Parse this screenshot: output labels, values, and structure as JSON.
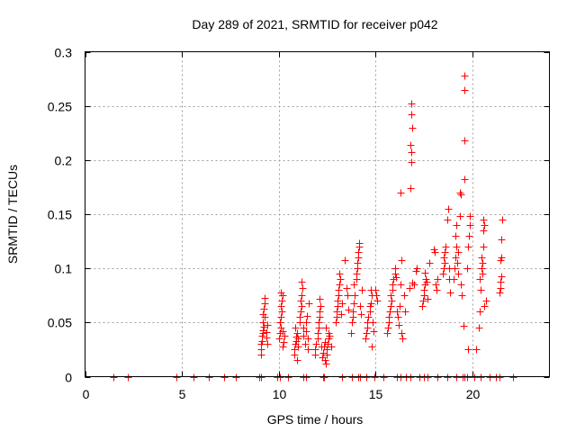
{
  "chart_data": {
    "type": "scatter",
    "title": "Day 289 of 2021, SRMTID for receiver p042",
    "xlabel": "GPS time / hours",
    "ylabel": "SRMTID / TECUs",
    "xlim": [
      0,
      24
    ],
    "ylim": [
      0,
      0.3
    ],
    "grid": true,
    "legend": "none",
    "marker": "plus",
    "color": "#ff0000",
    "x_ticks": [
      {
        "v": 0,
        "label": "0"
      },
      {
        "v": 5,
        "label": "5"
      },
      {
        "v": 10,
        "label": "10"
      },
      {
        "v": 15,
        "label": "15"
      },
      {
        "v": 20,
        "label": "20"
      }
    ],
    "y_ticks": [
      {
        "v": 0,
        "label": "0"
      },
      {
        "v": 0.05,
        "label": "0.05"
      },
      {
        "v": 0.1,
        "label": "0.1"
      },
      {
        "v": 0.15,
        "label": "0.15"
      },
      {
        "v": 0.2,
        "label": "0.2"
      },
      {
        "v": 0.25,
        "label": "0.25"
      },
      {
        "v": 0.3,
        "label": "0.3"
      }
    ],
    "series": [
      {
        "name": "SRMTID",
        "zero_points_x": [
          1.45,
          2.2,
          4.7,
          5.6,
          6.4,
          7.2,
          7.8,
          9.0,
          9.1,
          9.95,
          10.05,
          10.5,
          11.3,
          11.4,
          12.3,
          12.35,
          13.3,
          13.8,
          14.1,
          14.2,
          14.55,
          14.95,
          15.4,
          16.1,
          16.3,
          16.6,
          16.8,
          17.3,
          17.5,
          17.7,
          18.2,
          18.7,
          19.2,
          19.5,
          19.6,
          19.75,
          20.1,
          20.45,
          20.9,
          21.25,
          21.4,
          22.1
        ],
        "points": [
          [
            9.1,
            0.025
          ],
          [
            9.1,
            0.03
          ],
          [
            9.15,
            0.033
          ],
          [
            9.15,
            0.038
          ],
          [
            9.2,
            0.04
          ],
          [
            9.2,
            0.043
          ],
          [
            9.25,
            0.046
          ],
          [
            9.2,
            0.05
          ],
          [
            9.3,
            0.055
          ],
          [
            9.25,
            0.063
          ],
          [
            9.3,
            0.068
          ],
          [
            9.3,
            0.073
          ],
          [
            9.35,
            0.036
          ],
          [
            9.35,
            0.041
          ],
          [
            9.4,
            0.048
          ],
          [
            9.1,
            0.02
          ],
          [
            9.2,
            0.058
          ],
          [
            9.4,
            0.03
          ],
          [
            10.0,
            0.035
          ],
          [
            10.05,
            0.04
          ],
          [
            10.1,
            0.045
          ],
          [
            10.05,
            0.05
          ],
          [
            10.1,
            0.055
          ],
          [
            10.15,
            0.06
          ],
          [
            10.1,
            0.065
          ],
          [
            10.15,
            0.07
          ],
          [
            10.2,
            0.075
          ],
          [
            10.1,
            0.078
          ],
          [
            10.2,
            0.042
          ],
          [
            10.25,
            0.032
          ],
          [
            10.3,
            0.038
          ],
          [
            10.2,
            0.028
          ],
          [
            10.8,
            0.02
          ],
          [
            10.8,
            0.025
          ],
          [
            10.85,
            0.03
          ],
          [
            10.9,
            0.033
          ],
          [
            10.9,
            0.037
          ],
          [
            10.95,
            0.04
          ],
          [
            10.85,
            0.045
          ],
          [
            11.0,
            0.035
          ],
          [
            11.0,
            0.028
          ],
          [
            10.95,
            0.015
          ],
          [
            11.1,
            0.05
          ],
          [
            11.1,
            0.055
          ],
          [
            11.15,
            0.06
          ],
          [
            11.2,
            0.065
          ],
          [
            11.15,
            0.07
          ],
          [
            11.2,
            0.075
          ],
          [
            11.25,
            0.082
          ],
          [
            11.2,
            0.088
          ],
          [
            11.3,
            0.045
          ],
          [
            11.3,
            0.038
          ],
          [
            11.35,
            0.03
          ],
          [
            11.4,
            0.042
          ],
          [
            11.4,
            0.05
          ],
          [
            11.45,
            0.056
          ],
          [
            11.5,
            0.035
          ],
          [
            11.5,
            0.025
          ],
          [
            11.55,
            0.068
          ],
          [
            11.9,
            0.02
          ],
          [
            11.9,
            0.025
          ],
          [
            11.95,
            0.03
          ],
          [
            12.0,
            0.035
          ],
          [
            12.0,
            0.04
          ],
          [
            12.05,
            0.045
          ],
          [
            12.05,
            0.05
          ],
          [
            12.1,
            0.055
          ],
          [
            12.1,
            0.06
          ],
          [
            12.15,
            0.065
          ],
          [
            12.1,
            0.072
          ],
          [
            12.2,
            0.028
          ],
          [
            12.25,
            0.018
          ],
          [
            12.3,
            0.022
          ],
          [
            12.35,
            0.028
          ],
          [
            12.4,
            0.032
          ],
          [
            12.4,
            0.015
          ],
          [
            12.45,
            0.012
          ],
          [
            12.5,
            0.02
          ],
          [
            12.5,
            0.025
          ],
          [
            12.55,
            0.03
          ],
          [
            12.6,
            0.035
          ],
          [
            12.6,
            0.04
          ],
          [
            12.65,
            0.038
          ],
          [
            12.45,
            0.045
          ],
          [
            12.7,
            0.028
          ],
          [
            12.95,
            0.05
          ],
          [
            13.0,
            0.055
          ],
          [
            13.0,
            0.06
          ],
          [
            13.05,
            0.065
          ],
          [
            13.05,
            0.07
          ],
          [
            13.1,
            0.075
          ],
          [
            13.1,
            0.08
          ],
          [
            13.15,
            0.085
          ],
          [
            13.2,
            0.09
          ],
          [
            13.15,
            0.095
          ],
          [
            13.25,
            0.058
          ],
          [
            13.3,
            0.068
          ],
          [
            13.4,
            0.108
          ],
          [
            13.5,
            0.082
          ],
          [
            13.55,
            0.075
          ],
          [
            13.6,
            0.062
          ],
          [
            13.75,
            0.04
          ],
          [
            13.8,
            0.05
          ],
          [
            13.85,
            0.055
          ],
          [
            13.85,
            0.06
          ],
          [
            13.9,
            0.068
          ],
          [
            13.95,
            0.075
          ],
          [
            13.9,
            0.085
          ],
          [
            14.0,
            0.09
          ],
          [
            14.0,
            0.095
          ],
          [
            14.05,
            0.1
          ],
          [
            14.05,
            0.105
          ],
          [
            14.1,
            0.11
          ],
          [
            14.1,
            0.115
          ],
          [
            14.15,
            0.12
          ],
          [
            14.15,
            0.123
          ],
          [
            14.2,
            0.065
          ],
          [
            14.25,
            0.058
          ],
          [
            14.3,
            0.08
          ],
          [
            14.5,
            0.035
          ],
          [
            14.55,
            0.04
          ],
          [
            14.6,
            0.045
          ],
          [
            14.6,
            0.05
          ],
          [
            14.65,
            0.055
          ],
          [
            14.7,
            0.06
          ],
          [
            14.7,
            0.065
          ],
          [
            14.75,
            0.068
          ],
          [
            14.8,
            0.075
          ],
          [
            14.75,
            0.08
          ],
          [
            14.85,
            0.05
          ],
          [
            14.8,
            0.028
          ],
          [
            14.9,
            0.042
          ],
          [
            15.0,
            0.08
          ],
          [
            15.05,
            0.075
          ],
          [
            15.1,
            0.07
          ],
          [
            15.6,
            0.04
          ],
          [
            15.65,
            0.045
          ],
          [
            15.7,
            0.05
          ],
          [
            15.7,
            0.055
          ],
          [
            15.75,
            0.06
          ],
          [
            15.8,
            0.065
          ],
          [
            15.85,
            0.07
          ],
          [
            15.8,
            0.075
          ],
          [
            15.9,
            0.08
          ],
          [
            15.9,
            0.085
          ],
          [
            15.95,
            0.09
          ],
          [
            16.0,
            0.095
          ],
          [
            16.0,
            0.1
          ],
          [
            16.05,
            0.092
          ],
          [
            16.1,
            0.06
          ],
          [
            16.15,
            0.055
          ],
          [
            16.2,
            0.048
          ],
          [
            16.25,
            0.065
          ],
          [
            16.3,
            0.085
          ],
          [
            16.35,
            0.04
          ],
          [
            16.4,
            0.035
          ],
          [
            16.35,
            0.108
          ],
          [
            16.3,
            0.17
          ],
          [
            16.5,
            0.075
          ],
          [
            16.55,
            0.06
          ],
          [
            16.75,
            0.082
          ],
          [
            16.8,
            0.174
          ],
          [
            16.85,
            0.198
          ],
          [
            16.85,
            0.207
          ],
          [
            16.8,
            0.214
          ],
          [
            16.9,
            0.23
          ],
          [
            16.85,
            0.242
          ],
          [
            16.85,
            0.252
          ],
          [
            16.9,
            0.087
          ],
          [
            17.0,
            0.085
          ],
          [
            17.1,
            0.098
          ],
          [
            17.15,
            0.1
          ],
          [
            17.4,
            0.065
          ],
          [
            17.45,
            0.07
          ],
          [
            17.5,
            0.075
          ],
          [
            17.5,
            0.08
          ],
          [
            17.55,
            0.085
          ],
          [
            17.6,
            0.09
          ],
          [
            17.55,
            0.096
          ],
          [
            17.65,
            0.088
          ],
          [
            17.7,
            0.072
          ],
          [
            17.8,
            0.105
          ],
          [
            18.0,
            0.118
          ],
          [
            18.05,
            0.115
          ],
          [
            18.1,
            0.085
          ],
          [
            18.15,
            0.08
          ],
          [
            18.2,
            0.09
          ],
          [
            18.5,
            0.095
          ],
          [
            18.55,
            0.1
          ],
          [
            18.6,
            0.105
          ],
          [
            18.55,
            0.11
          ],
          [
            18.6,
            0.115
          ],
          [
            18.65,
            0.12
          ],
          [
            18.7,
            0.145
          ],
          [
            18.75,
            0.155
          ],
          [
            18.8,
            0.1
          ],
          [
            18.8,
            0.09
          ],
          [
            18.85,
            0.078
          ],
          [
            19.05,
            0.09
          ],
          [
            19.1,
            0.1
          ],
          [
            19.15,
            0.11
          ],
          [
            19.2,
            0.12
          ],
          [
            19.15,
            0.13
          ],
          [
            19.2,
            0.14
          ],
          [
            19.25,
            0.105
          ],
          [
            19.3,
            0.095
          ],
          [
            19.3,
            0.115
          ],
          [
            19.35,
            0.17
          ],
          [
            19.4,
            0.168
          ],
          [
            19.35,
            0.148
          ],
          [
            19.4,
            0.085
          ],
          [
            19.45,
            0.075
          ],
          [
            19.6,
            0.182
          ],
          [
            19.6,
            0.218
          ],
          [
            19.6,
            0.265
          ],
          [
            19.6,
            0.278
          ],
          [
            19.55,
            0.047
          ],
          [
            19.8,
            0.025
          ],
          [
            19.75,
            0.1
          ],
          [
            19.8,
            0.12
          ],
          [
            19.85,
            0.13
          ],
          [
            19.9,
            0.14
          ],
          [
            19.9,
            0.148
          ],
          [
            20.2,
            0.025
          ],
          [
            20.35,
            0.045
          ],
          [
            20.4,
            0.06
          ],
          [
            20.45,
            0.08
          ],
          [
            20.4,
            0.09
          ],
          [
            20.5,
            0.1
          ],
          [
            20.55,
            0.105
          ],
          [
            20.5,
            0.11
          ],
          [
            20.6,
            0.12
          ],
          [
            20.6,
            0.135
          ],
          [
            20.65,
            0.14
          ],
          [
            20.6,
            0.145
          ],
          [
            20.65,
            0.065
          ],
          [
            20.7,
            0.07
          ],
          [
            20.55,
            0.095
          ],
          [
            21.4,
            0.078
          ],
          [
            21.45,
            0.082
          ],
          [
            21.45,
            0.088
          ],
          [
            21.5,
            0.093
          ],
          [
            21.45,
            0.108
          ],
          [
            21.5,
            0.11
          ],
          [
            21.5,
            0.127
          ],
          [
            21.55,
            0.145
          ]
        ]
      }
    ]
  }
}
